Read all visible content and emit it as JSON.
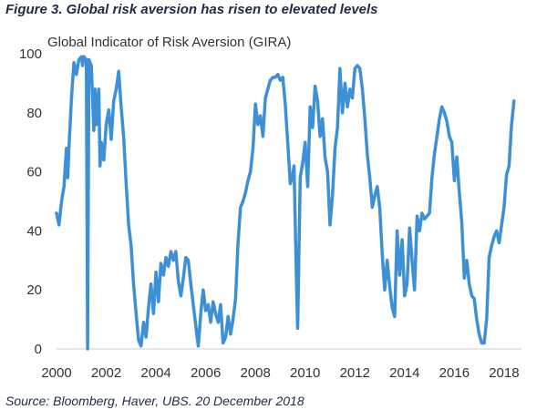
{
  "figure": {
    "caption": "Figure 3. Global risk aversion has risen to elevated levels",
    "source": "Source: Bloomberg, Haver, UBS. 20 December 2018"
  },
  "chart_data": {
    "type": "line",
    "title": "Global Indicator of Risk Aversion (GIRA)",
    "xlabel": "",
    "ylabel": "",
    "xlim": [
      2000,
      2018.7
    ],
    "ylim": [
      0,
      100
    ],
    "x_ticks": [
      2000,
      2002,
      2004,
      2006,
      2008,
      2010,
      2012,
      2014,
      2016,
      2018
    ],
    "y_ticks": [
      0,
      20,
      40,
      60,
      80,
      100
    ],
    "grid": false,
    "legend": "none",
    "series": [
      {
        "color": "#3d8fd6",
        "points": [
          [
            2000.0,
            46
          ],
          [
            2000.1,
            42
          ],
          [
            2000.2,
            50
          ],
          [
            2000.3,
            55
          ],
          [
            2000.4,
            68
          ],
          [
            2000.45,
            58
          ],
          [
            2000.5,
            68
          ],
          [
            2000.6,
            85
          ],
          [
            2000.7,
            97
          ],
          [
            2000.8,
            93
          ],
          [
            2000.9,
            98
          ],
          [
            2001.0,
            99
          ],
          [
            2001.05,
            96
          ],
          [
            2001.1,
            99
          ],
          [
            2001.2,
            98
          ],
          [
            2001.25,
            0
          ],
          [
            2001.3,
            98
          ],
          [
            2001.4,
            96
          ],
          [
            2001.5,
            74
          ],
          [
            2001.55,
            88
          ],
          [
            2001.6,
            76
          ],
          [
            2001.7,
            88
          ],
          [
            2001.75,
            62
          ],
          [
            2001.8,
            70
          ],
          [
            2001.9,
            64
          ],
          [
            2002.0,
            76
          ],
          [
            2002.1,
            81
          ],
          [
            2002.2,
            71
          ],
          [
            2002.3,
            84
          ],
          [
            2002.4,
            88
          ],
          [
            2002.5,
            94
          ],
          [
            2002.6,
            82
          ],
          [
            2002.7,
            72
          ],
          [
            2002.8,
            56
          ],
          [
            2002.9,
            42
          ],
          [
            2003.0,
            35
          ],
          [
            2003.1,
            22
          ],
          [
            2003.2,
            12
          ],
          [
            2003.3,
            3
          ],
          [
            2003.4,
            1
          ],
          [
            2003.5,
            9
          ],
          [
            2003.6,
            4
          ],
          [
            2003.7,
            14
          ],
          [
            2003.8,
            22
          ],
          [
            2003.9,
            12
          ],
          [
            2004.0,
            26
          ],
          [
            2004.1,
            16
          ],
          [
            2004.2,
            29
          ],
          [
            2004.3,
            25
          ],
          [
            2004.4,
            31
          ],
          [
            2004.5,
            28
          ],
          [
            2004.6,
            33
          ],
          [
            2004.7,
            30
          ],
          [
            2004.8,
            33
          ],
          [
            2004.9,
            23
          ],
          [
            2005.0,
            18
          ],
          [
            2005.1,
            24
          ],
          [
            2005.2,
            31
          ],
          [
            2005.3,
            30
          ],
          [
            2005.4,
            22
          ],
          [
            2005.5,
            15
          ],
          [
            2005.6,
            8
          ],
          [
            2005.7,
            1
          ],
          [
            2005.8,
            12
          ],
          [
            2005.9,
            20
          ],
          [
            2006.0,
            13
          ],
          [
            2006.1,
            15
          ],
          [
            2006.2,
            9
          ],
          [
            2006.3,
            16
          ],
          [
            2006.4,
            12
          ],
          [
            2006.5,
            9
          ],
          [
            2006.6,
            15
          ],
          [
            2006.7,
            2
          ],
          [
            2006.8,
            4
          ],
          [
            2006.9,
            11
          ],
          [
            2007.0,
            5
          ],
          [
            2007.1,
            10
          ],
          [
            2007.2,
            17
          ],
          [
            2007.3,
            36
          ],
          [
            2007.4,
            48
          ],
          [
            2007.5,
            50
          ],
          [
            2007.6,
            53
          ],
          [
            2007.7,
            57
          ],
          [
            2007.8,
            60
          ],
          [
            2007.9,
            68
          ],
          [
            2008.0,
            83
          ],
          [
            2008.1,
            76
          ],
          [
            2008.2,
            79
          ],
          [
            2008.3,
            72
          ],
          [
            2008.4,
            85
          ],
          [
            2008.5,
            88
          ],
          [
            2008.6,
            91
          ],
          [
            2008.7,
            92
          ],
          [
            2008.8,
            92
          ],
          [
            2008.9,
            93
          ],
          [
            2009.0,
            91
          ],
          [
            2009.1,
            92
          ],
          [
            2009.2,
            83
          ],
          [
            2009.3,
            70
          ],
          [
            2009.4,
            56
          ],
          [
            2009.5,
            59
          ],
          [
            2009.55,
            62
          ],
          [
            2009.65,
            23
          ],
          [
            2009.7,
            7
          ],
          [
            2009.8,
            58
          ],
          [
            2009.9,
            63
          ],
          [
            2010.0,
            70
          ],
          [
            2010.1,
            55
          ],
          [
            2010.2,
            82
          ],
          [
            2010.3,
            75
          ],
          [
            2010.4,
            89
          ],
          [
            2010.5,
            84
          ],
          [
            2010.6,
            72
          ],
          [
            2010.7,
            78
          ],
          [
            2010.8,
            65
          ],
          [
            2010.9,
            60
          ],
          [
            2011.0,
            42
          ],
          [
            2011.1,
            52
          ],
          [
            2011.2,
            68
          ],
          [
            2011.3,
            75
          ],
          [
            2011.4,
            95
          ],
          [
            2011.5,
            80
          ],
          [
            2011.6,
            90
          ],
          [
            2011.7,
            82
          ],
          [
            2011.8,
            88
          ],
          [
            2011.9,
            85
          ],
          [
            2012.0,
            95
          ],
          [
            2012.1,
            96
          ],
          [
            2012.2,
            95
          ],
          [
            2012.3,
            88
          ],
          [
            2012.4,
            78
          ],
          [
            2012.5,
            66
          ],
          [
            2012.6,
            58
          ],
          [
            2012.7,
            48
          ],
          [
            2012.8,
            52
          ],
          [
            2012.9,
            55
          ],
          [
            2013.0,
            48
          ],
          [
            2013.1,
            32
          ],
          [
            2013.2,
            20
          ],
          [
            2013.3,
            30
          ],
          [
            2013.4,
            21
          ],
          [
            2013.5,
            14
          ],
          [
            2013.6,
            11
          ],
          [
            2013.7,
            40
          ],
          [
            2013.8,
            25
          ],
          [
            2013.9,
            37
          ],
          [
            2014.0,
            18
          ],
          [
            2014.1,
            22
          ],
          [
            2014.2,
            41
          ],
          [
            2014.3,
            30
          ],
          [
            2014.4,
            20
          ],
          [
            2014.5,
            45
          ],
          [
            2014.6,
            40
          ],
          [
            2014.7,
            46
          ],
          [
            2014.8,
            44
          ],
          [
            2014.9,
            45
          ],
          [
            2015.0,
            46
          ],
          [
            2015.1,
            58
          ],
          [
            2015.2,
            66
          ],
          [
            2015.3,
            72
          ],
          [
            2015.4,
            78
          ],
          [
            2015.5,
            82
          ],
          [
            2015.6,
            80
          ],
          [
            2015.7,
            77
          ],
          [
            2015.8,
            72
          ],
          [
            2015.9,
            70
          ],
          [
            2016.0,
            57
          ],
          [
            2016.1,
            65
          ],
          [
            2016.2,
            53
          ],
          [
            2016.3,
            43
          ],
          [
            2016.4,
            24
          ],
          [
            2016.5,
            30
          ],
          [
            2016.6,
            22
          ],
          [
            2016.7,
            18
          ],
          [
            2016.8,
            17
          ],
          [
            2016.9,
            10
          ],
          [
            2017.0,
            5
          ],
          [
            2017.1,
            2
          ],
          [
            2017.2,
            2
          ],
          [
            2017.3,
            10
          ],
          [
            2017.4,
            31
          ],
          [
            2017.5,
            35
          ],
          [
            2017.6,
            38
          ],
          [
            2017.7,
            40
          ],
          [
            2017.8,
            36
          ],
          [
            2017.9,
            42
          ],
          [
            2018.0,
            48
          ],
          [
            2018.1,
            59
          ],
          [
            2018.2,
            62
          ],
          [
            2018.3,
            76
          ],
          [
            2018.4,
            84
          ]
        ]
      }
    ]
  }
}
